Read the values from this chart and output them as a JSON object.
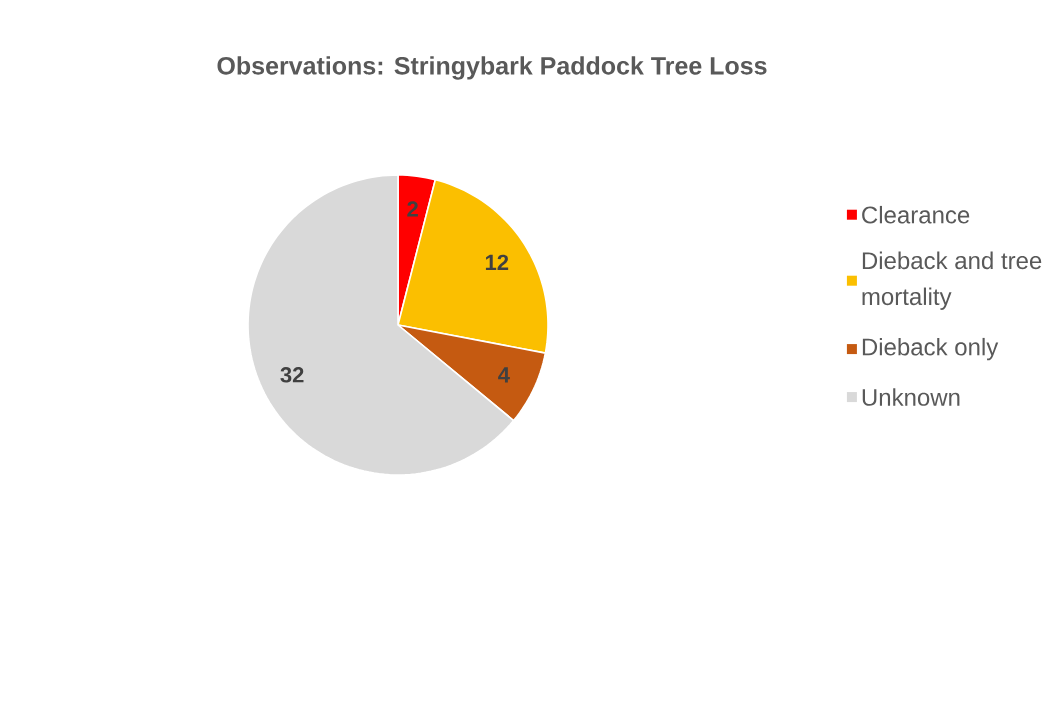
{
  "chart_data": {
    "type": "pie",
    "title": "Observations: Stringybark Paddock Tree Loss",
    "categories": [
      "Clearance",
      "Dieback and tree mortality",
      "Dieback only",
      "Unknown"
    ],
    "values": [
      2,
      12,
      4,
      32
    ],
    "colors": [
      "#ff0000",
      "#fbbf00",
      "#c55a11",
      "#d9d9d9"
    ],
    "data_labels": true,
    "legend": "right"
  }
}
